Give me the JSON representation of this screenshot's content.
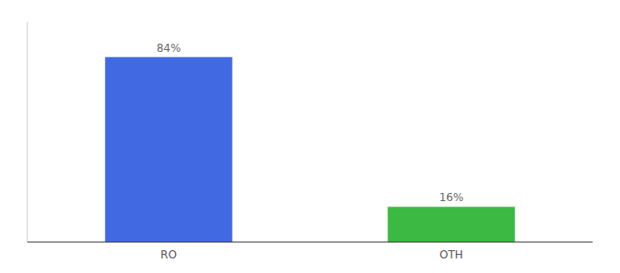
{
  "chart_data": {
    "type": "bar",
    "categories": [
      "RO",
      "OTH"
    ],
    "values": [
      84,
      16
    ],
    "value_labels": [
      "84%",
      "16%"
    ],
    "colors": [
      "#4169e1",
      "#3cb943"
    ],
    "ylim": [
      0,
      100
    ],
    "yticks": [],
    "data_labels": true,
    "tick_labels": "x",
    "grid": false
  }
}
